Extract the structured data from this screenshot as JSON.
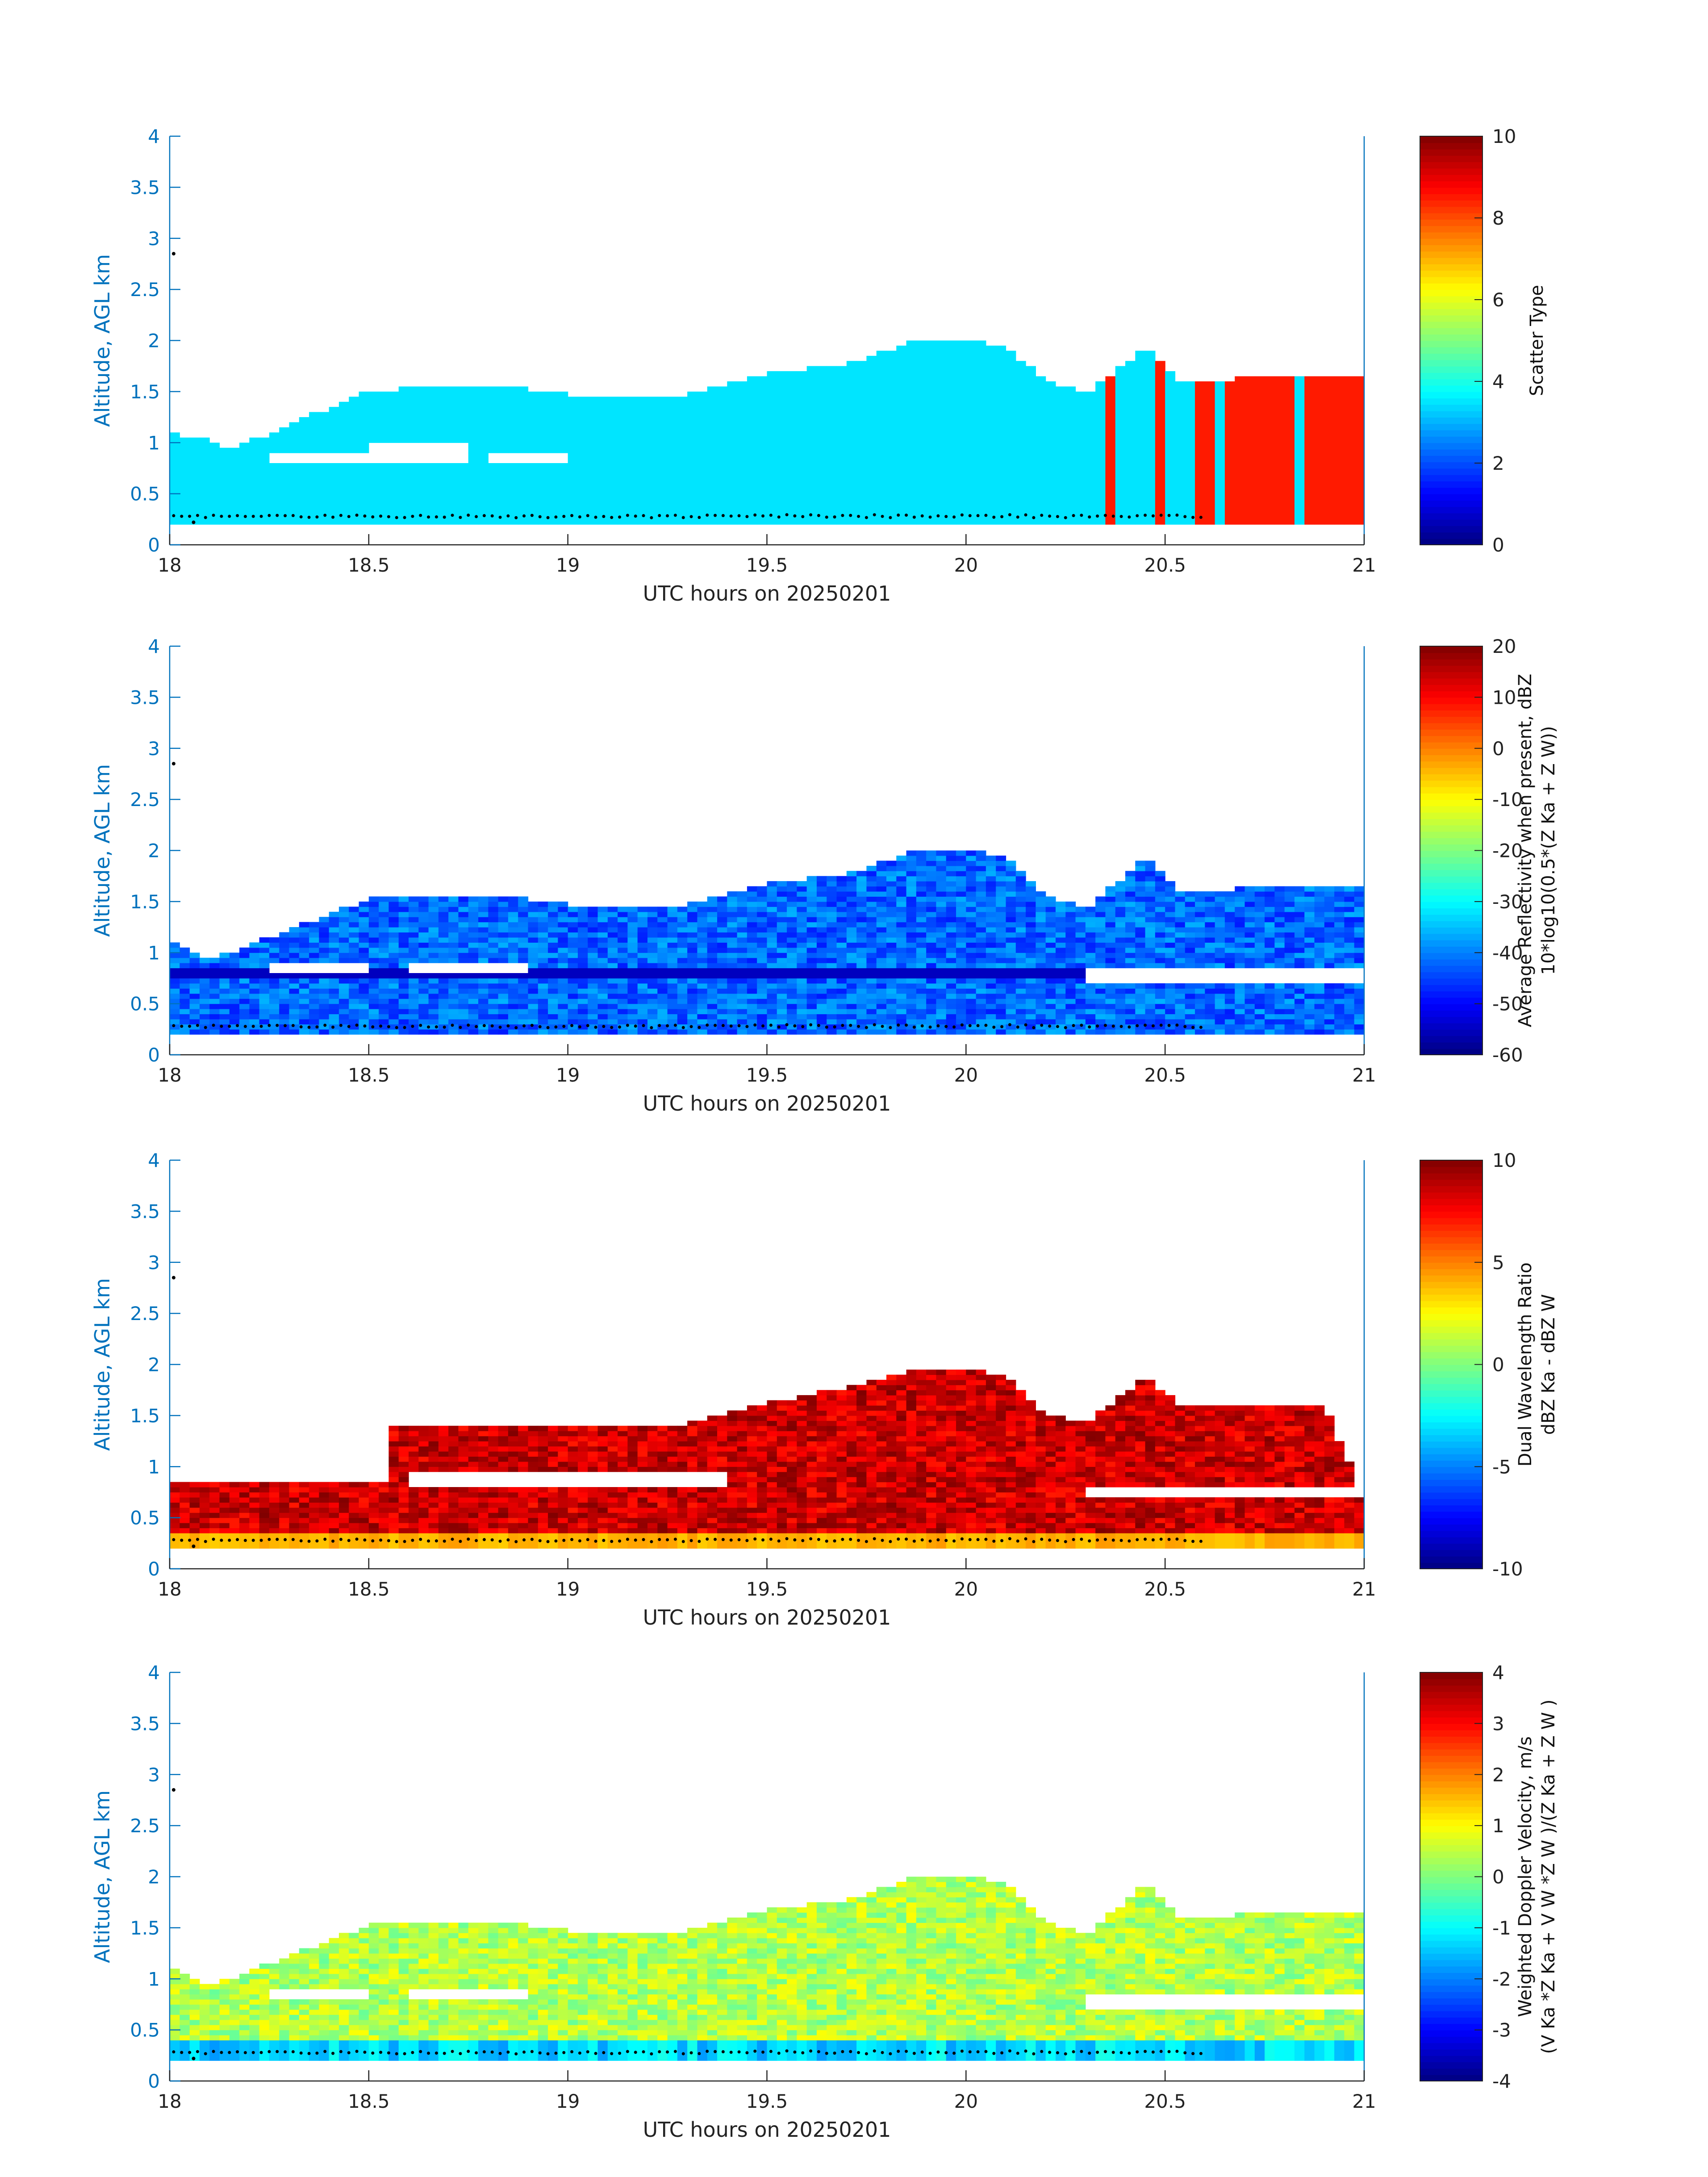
{
  "chart_data": [
    {
      "type": "heatmap",
      "title": "",
      "xlabel": "UTC hours on 20250201",
      "ylabel": "Altitude, AGL km",
      "xlim": [
        18,
        21
      ],
      "ylim": [
        0,
        4
      ],
      "xticks": [
        "18",
        "18.5",
        "19",
        "19.5",
        "20",
        "20.5",
        "21"
      ],
      "yticks": [
        "0",
        "0.5",
        "1",
        "1.5",
        "2",
        "2.5",
        "3",
        "3.5",
        "4"
      ],
      "colorbar": {
        "label_lines": [
          "Scatter Type"
        ],
        "range": [
          0,
          10
        ],
        "ticks": [
          "0",
          "2",
          "4",
          "6",
          "8",
          "10"
        ]
      },
      "colormap": "jet",
      "fields": {
        "top": [
          [
            18,
            1.06
          ],
          [
            18.1,
            1.0
          ],
          [
            18.15,
            0.9
          ],
          [
            18.5,
            1.48
          ],
          [
            18.8,
            1.55
          ],
          [
            19.0,
            1.45
          ],
          [
            19.3,
            1.45
          ],
          [
            19.5,
            1.65
          ],
          [
            19.7,
            1.75
          ],
          [
            19.85,
            1.95
          ],
          [
            20.0,
            2.0
          ],
          [
            20.1,
            1.9
          ],
          [
            20.2,
            1.6
          ],
          [
            20.3,
            1.45
          ],
          [
            20.45,
            1.9
          ],
          [
            20.55,
            1.55
          ],
          [
            20.8,
            1.65
          ],
          [
            21.0,
            1.65
          ]
        ],
        "gaps": [
          [
            18.25,
            18.5,
            0.78,
            0.9
          ],
          [
            18.5,
            18.75,
            0.78,
            0.98
          ],
          [
            18.8,
            19.0,
            0.78,
            0.9
          ]
        ],
        "value": 3.5,
        "secondary": {
          "value": 8.5,
          "spans": [
            [
              20.36,
              20.38
            ],
            [
              20.48,
              20.51
            ],
            [
              20.58,
              20.62
            ],
            [
              20.65,
              20.82
            ],
            [
              20.86,
              21.0
            ]
          ]
        }
      },
      "overlay_points": {
        "start_x": 18.0,
        "end_x": 20.6,
        "y": 0.28,
        "extra": [
          [
            18.01,
            2.85
          ],
          [
            18.06,
            0.22
          ]
        ]
      }
    },
    {
      "type": "heatmap",
      "title": "",
      "xlabel": "UTC hours on 20250201",
      "ylabel": "Altitude, AGL km",
      "xlim": [
        18,
        21
      ],
      "ylim": [
        0,
        4
      ],
      "xticks": [
        "18",
        "18.5",
        "19",
        "19.5",
        "20",
        "20.5",
        "21"
      ],
      "yticks": [
        "0",
        "0.5",
        "1",
        "1.5",
        "2",
        "2.5",
        "3",
        "3.5",
        "4"
      ],
      "colorbar": {
        "label_lines": [
          "Average Reflectivity when present, dBZ",
          "10*log10(0.5*(Z Ka + Z W))"
        ],
        "range": [
          -60,
          20
        ],
        "ticks": [
          "-60",
          "-50",
          "-40",
          "-30",
          "-20",
          "-10",
          "0",
          "10",
          "20"
        ]
      },
      "colormap": "jet",
      "fields": {
        "top": [
          [
            18,
            1.1
          ],
          [
            18.1,
            0.9
          ],
          [
            18.5,
            1.5
          ],
          [
            18.8,
            1.55
          ],
          [
            19.0,
            1.45
          ],
          [
            19.3,
            1.45
          ],
          [
            19.5,
            1.65
          ],
          [
            19.7,
            1.75
          ],
          [
            19.85,
            1.95
          ],
          [
            20.0,
            2.0
          ],
          [
            20.1,
            1.9
          ],
          [
            20.2,
            1.55
          ],
          [
            20.3,
            1.4
          ],
          [
            20.45,
            1.9
          ],
          [
            20.55,
            1.55
          ],
          [
            20.8,
            1.65
          ],
          [
            21.0,
            1.65
          ]
        ],
        "gaps": [
          [
            18.25,
            18.5,
            0.78,
            0.92
          ],
          [
            18.6,
            18.9,
            0.78,
            0.9
          ],
          [
            20.3,
            21.0,
            0.68,
            0.85
          ]
        ],
        "value": -42,
        "variation": 6,
        "dark_band": {
          "y": 0.82,
          "value": -55
        }
      },
      "overlay_points": {
        "start_x": 18.0,
        "end_x": 20.6,
        "y": 0.28,
        "extra": [
          [
            18.01,
            2.85
          ]
        ]
      }
    },
    {
      "type": "heatmap",
      "title": "",
      "xlabel": "UTC hours on 20250201",
      "ylabel": "Altitude, AGL km",
      "xlim": [
        18,
        21
      ],
      "ylim": [
        0,
        4
      ],
      "xticks": [
        "18",
        "18.5",
        "19",
        "19.5",
        "20",
        "20.5",
        "21"
      ],
      "yticks": [
        "0",
        "0.5",
        "1",
        "1.5",
        "2",
        "2.5",
        "3",
        "3.5",
        "4"
      ],
      "colorbar": {
        "label_lines": [
          "Dual Wavelength Ratio",
          "dBZ Ka - dBZ W"
        ],
        "range": [
          -10,
          10
        ],
        "ticks": [
          "-10",
          "-5",
          "0",
          "5",
          "10"
        ]
      },
      "colormap": "jet",
      "fields": {
        "top": [
          [
            18,
            0.9
          ],
          [
            18.5,
            0.85
          ],
          [
            18.55,
            1.35
          ],
          [
            18.8,
            1.4
          ],
          [
            19.0,
            1.35
          ],
          [
            19.3,
            1.4
          ],
          [
            19.5,
            1.6
          ],
          [
            19.7,
            1.75
          ],
          [
            19.85,
            1.9
          ],
          [
            20.0,
            1.95
          ],
          [
            20.1,
            1.85
          ],
          [
            20.2,
            1.5
          ],
          [
            20.3,
            1.4
          ],
          [
            20.45,
            1.85
          ],
          [
            20.55,
            1.55
          ],
          [
            20.9,
            1.6
          ],
          [
            21.0,
            0.65
          ]
        ],
        "gaps": [
          [
            18.0,
            18.55,
            0.85,
            1.4
          ],
          [
            20.3,
            21.0,
            0.68,
            0.82
          ],
          [
            18.6,
            19.4,
            0.82,
            0.95
          ]
        ],
        "value": 8.5,
        "variation": 1.5,
        "low_band": {
          "y": 0.3,
          "value": 4
        }
      },
      "overlay_points": {
        "start_x": 18.0,
        "end_x": 20.6,
        "y": 0.28,
        "extra": [
          [
            18.01,
            2.85
          ],
          [
            18.06,
            0.22
          ]
        ]
      }
    },
    {
      "type": "heatmap",
      "title": "",
      "xlabel": "UTC hours on 20250201",
      "ylabel": "Altitude, AGL km",
      "xlim": [
        18,
        21
      ],
      "ylim": [
        0,
        4
      ],
      "xticks": [
        "18",
        "18.5",
        "19",
        "19.5",
        "20",
        "20.5",
        "21"
      ],
      "yticks": [
        "0",
        "0.5",
        "1",
        "1.5",
        "2",
        "2.5",
        "3",
        "3.5",
        "4"
      ],
      "colorbar": {
        "label_lines": [
          "Weighted Doppler Velocity, m/s",
          "(V Ka *Z Ka + V W *Z W )/(Z Ka + Z W )"
        ],
        "range": [
          -4,
          4
        ],
        "ticks": [
          "-4",
          "-3",
          "-2",
          "-1",
          "0",
          "1",
          "2",
          "3",
          "4"
        ]
      },
      "colormap": "jet",
      "fields": {
        "top": [
          [
            18,
            1.1
          ],
          [
            18.1,
            0.9
          ],
          [
            18.5,
            1.5
          ],
          [
            18.8,
            1.55
          ],
          [
            19.0,
            1.45
          ],
          [
            19.3,
            1.45
          ],
          [
            19.5,
            1.65
          ],
          [
            19.7,
            1.75
          ],
          [
            19.85,
            1.95
          ],
          [
            20.0,
            2.0
          ],
          [
            20.1,
            1.9
          ],
          [
            20.2,
            1.55
          ],
          [
            20.3,
            1.4
          ],
          [
            20.45,
            1.9
          ],
          [
            20.55,
            1.55
          ],
          [
            20.8,
            1.65
          ],
          [
            21.0,
            1.65
          ]
        ],
        "gaps": [
          [
            18.25,
            18.5,
            0.78,
            0.92
          ],
          [
            18.6,
            18.9,
            0.78,
            0.9
          ],
          [
            20.3,
            21.0,
            0.68,
            0.85
          ]
        ],
        "value": 0.4,
        "variation": 0.6,
        "low_band": {
          "y": 0.35,
          "value": -1.3
        }
      },
      "overlay_points": {
        "start_x": 18.0,
        "end_x": 20.6,
        "y": 0.28,
        "extra": [
          [
            18.01,
            2.85
          ],
          [
            18.06,
            0.22
          ]
        ]
      }
    }
  ]
}
